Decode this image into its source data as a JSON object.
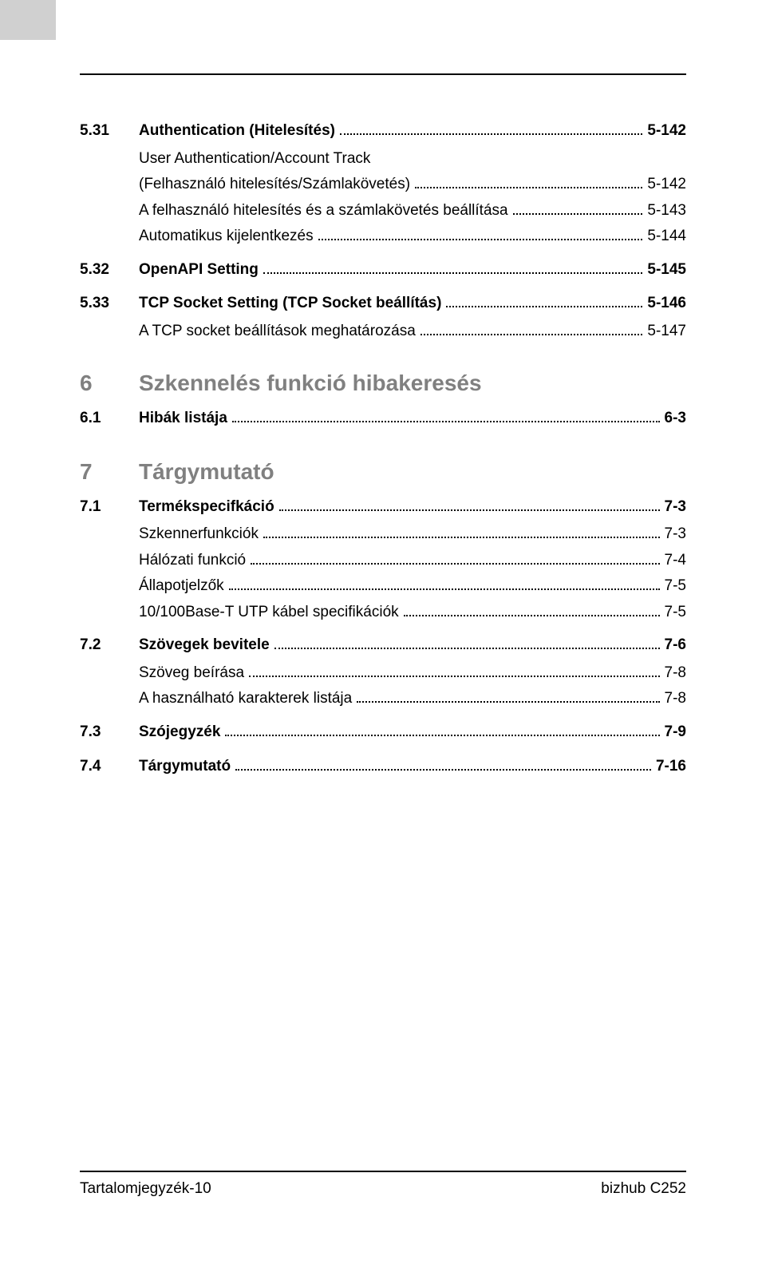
{
  "sections": {
    "s531": {
      "num": "5.31",
      "title": "Authentication (Hitelesítés)",
      "page": "5-142"
    },
    "s531a": {
      "title": "User Authentication/Account Track"
    },
    "s531b": {
      "title": "(Felhasználó hitelesítés/Számlakövetés)",
      "page": "5-142"
    },
    "s531c": {
      "title": "A felhasználó hitelesítés és a számlakövetés beállítása",
      "page": "5-143"
    },
    "s531d": {
      "title": "Automatikus kijelentkezés",
      "page": "5-144"
    },
    "s532": {
      "num": "5.32",
      "title": "OpenAPI Setting",
      "page": "5-145"
    },
    "s533": {
      "num": "5.33",
      "title": "TCP Socket Setting (TCP Socket beállítás)",
      "page": "5-146"
    },
    "s533a": {
      "title": "A TCP socket beállítások meghatározása",
      "page": "5-147"
    },
    "ch6": {
      "num": "6",
      "title": "Szkennelés funkció hibakeresés"
    },
    "s61": {
      "num": "6.1",
      "title": "Hibák listája",
      "page": "6-3"
    },
    "ch7": {
      "num": "7",
      "title": "Tárgymutató"
    },
    "s71": {
      "num": "7.1",
      "title": "Termékspecifkáció",
      "page": "7-3"
    },
    "s71a": {
      "title": "Szkennerfunkciók",
      "page": "7-3"
    },
    "s71b": {
      "title": "Hálózati funkció",
      "page": "7-4"
    },
    "s71c": {
      "title": "Állapotjelzők",
      "page": "7-5"
    },
    "s71d": {
      "title": "10/100Base-T UTP kábel specifikációk",
      "page": "7-5"
    },
    "s72": {
      "num": "7.2",
      "title": "Szövegek bevitele",
      "page": "7-6"
    },
    "s72a": {
      "title": "Szöveg beírása",
      "page": "7-8"
    },
    "s72b": {
      "title": "A használható karakterek listája",
      "page": "7-8"
    },
    "s73": {
      "num": "7.3",
      "title": "Szójegyzék",
      "page": "7-9"
    },
    "s74": {
      "num": "7.4",
      "title": "Tárgymutató",
      "page": "7-16"
    }
  },
  "footer": {
    "left": "Tartalomjegyzék-10",
    "right": "bizhub C252"
  }
}
